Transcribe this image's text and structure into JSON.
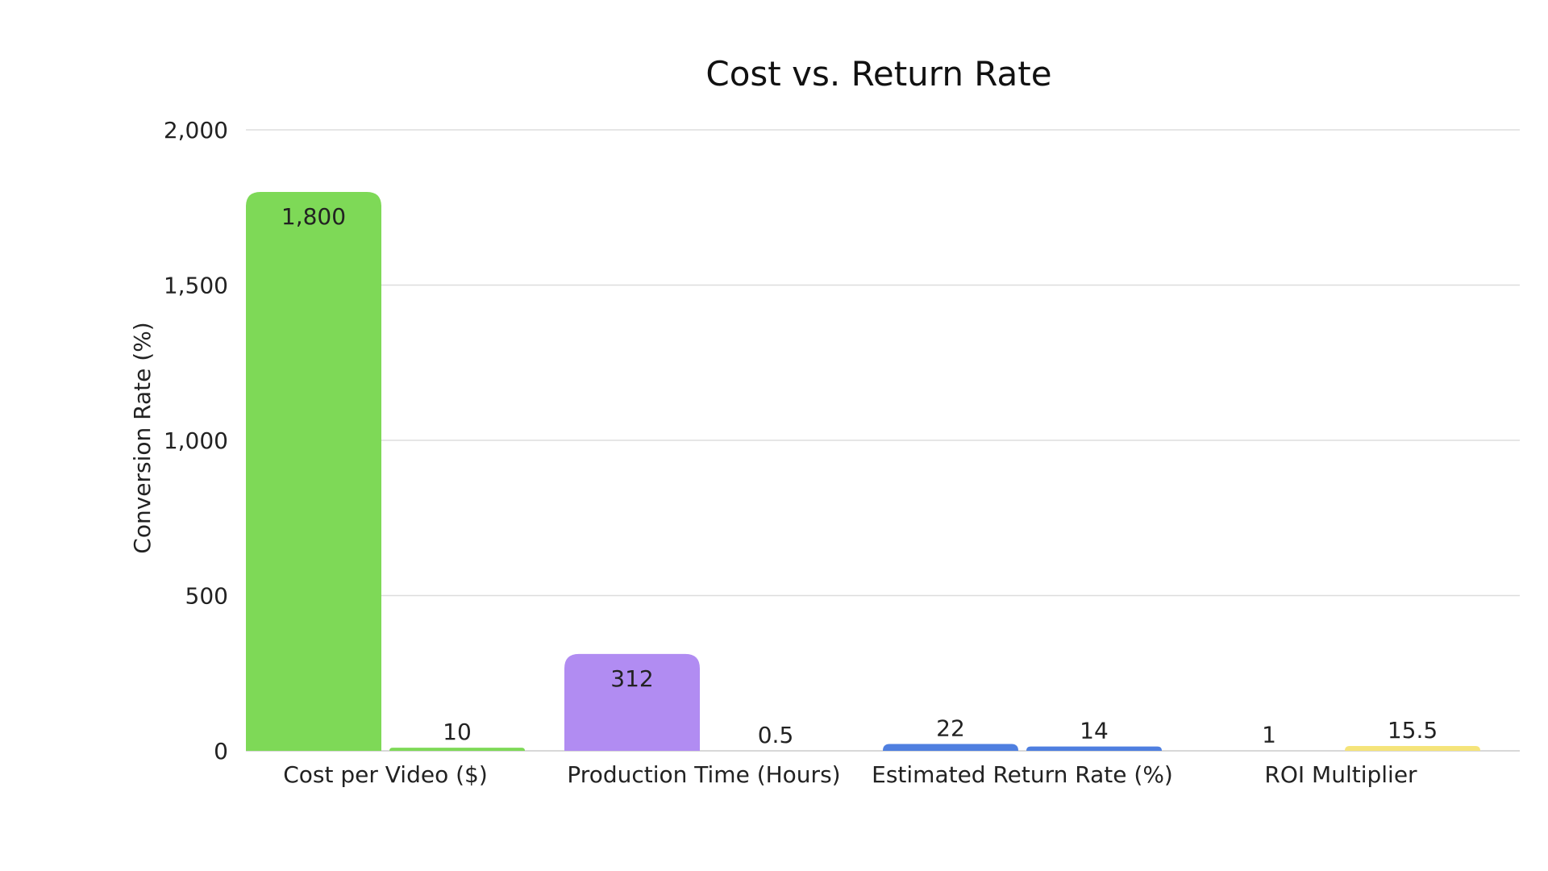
{
  "chart_data": {
    "type": "bar",
    "title": "Cost vs. Return Rate",
    "xlabel": "",
    "ylabel": "Conversion Rate (%)",
    "ylim": [
      0,
      2000
    ],
    "yticks": [
      0,
      500,
      1000,
      1500,
      2000
    ],
    "ytick_labels": [
      "0",
      "500",
      "1,000",
      "1,500",
      "2,000"
    ],
    "grid": true,
    "legend": "none",
    "categories": [
      "Cost per Video ($)",
      "Production Time (Hours)",
      "Estimated Return Rate (%)",
      "ROI Multiplier"
    ],
    "series": [
      {
        "values": [
          1800,
          312,
          22,
          1
        ],
        "value_labels": [
          "1,800",
          "312",
          "22",
          "1"
        ],
        "colors": [
          "#7ed957",
          "#b18cf2",
          "#4f7fe0",
          "#f5e47a"
        ],
        "label_colors": [
          "#222222",
          "#ffffff",
          "#222222",
          "#222222"
        ]
      },
      {
        "values": [
          10,
          0.5,
          14,
          15.5
        ],
        "value_labels": [
          "10",
          "0.5",
          "14",
          "15.5"
        ],
        "colors": [
          "#7ed957",
          "#b18cf2",
          "#4f7fe0",
          "#f5e47a"
        ],
        "label_colors": [
          "#222222",
          "#222222",
          "#222222",
          "#222222"
        ]
      }
    ]
  }
}
